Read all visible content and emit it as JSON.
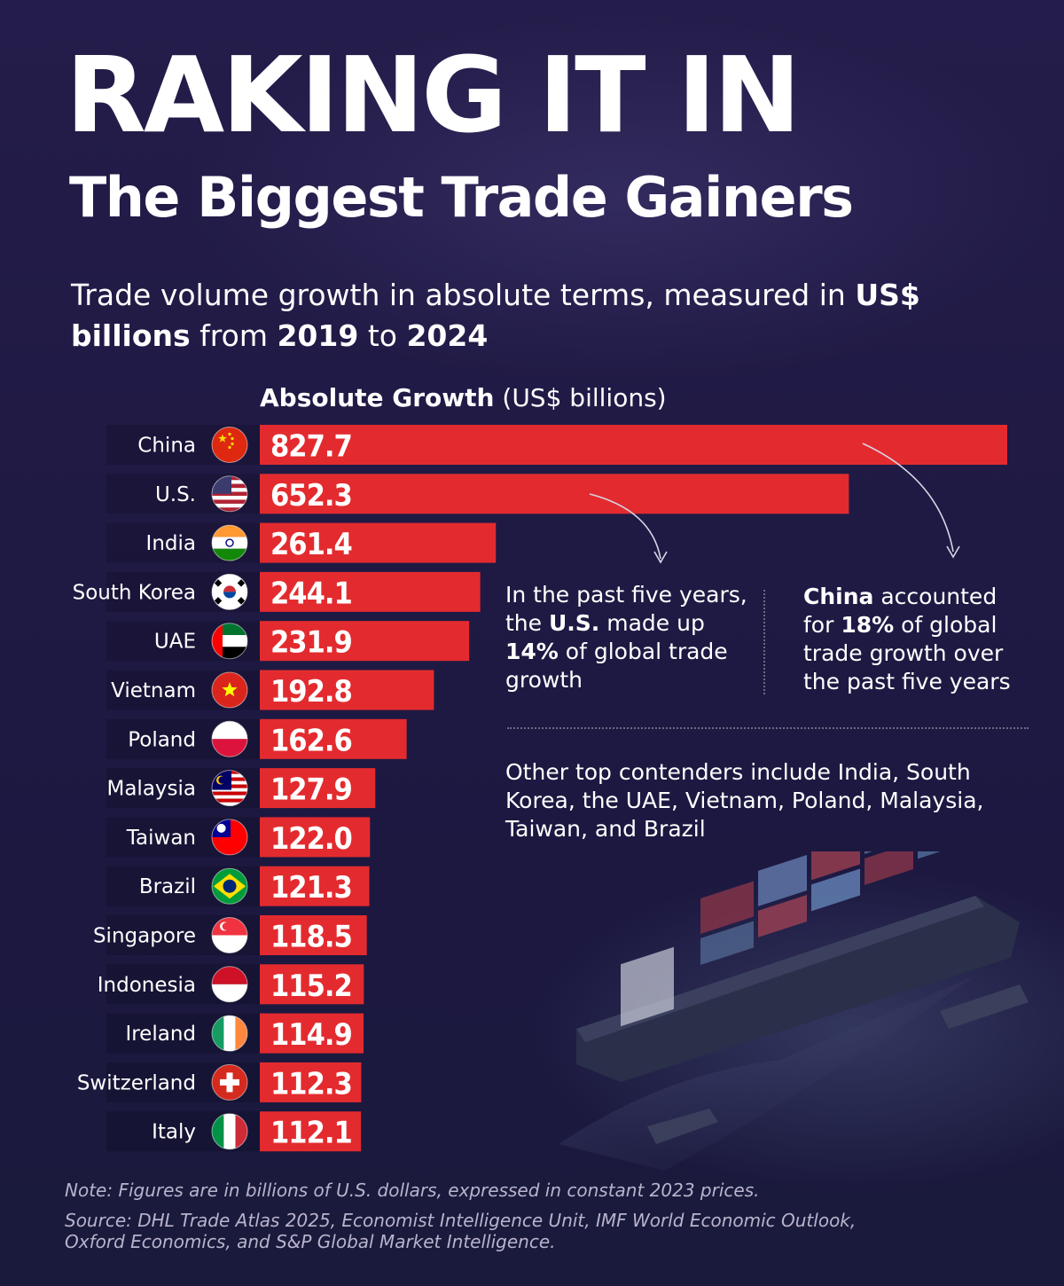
{
  "header": {
    "title": "RAKING IT IN",
    "subtitle": "The Biggest Trade Gainers"
  },
  "intro": {
    "text_1": "Trade volume growth in absolute terms, measured in ",
    "bold_1": "US$ billions",
    "text_2": " from ",
    "bold_2": "2019",
    "text_3": " to ",
    "bold_3": "2024"
  },
  "chart_data": {
    "type": "bar",
    "orientation": "horizontal",
    "title": "Absolute Growth",
    "unit": "(US$ billions)",
    "categories": [
      "China",
      "U.S.",
      "India",
      "South Korea",
      "UAE",
      "Vietnam",
      "Poland",
      "Malaysia",
      "Taiwan",
      "Brazil",
      "Singapore",
      "Indonesia",
      "Ireland",
      "Switzerland",
      "Italy"
    ],
    "values": [
      827.7,
      652.3,
      261.4,
      244.1,
      231.9,
      192.8,
      162.6,
      127.9,
      122.0,
      121.3,
      118.5,
      115.2,
      114.9,
      112.3,
      112.1
    ],
    "value_labels": [
      "827.7",
      "652.3",
      "261.4",
      "244.1",
      "231.9",
      "192.8",
      "162.6",
      "127.9",
      "122.0",
      "121.3",
      "118.5",
      "115.2",
      "114.9",
      "112.3",
      "112.1"
    ],
    "bar_color": "#e32b2f",
    "flags": [
      "china-flag-icon",
      "us-flag-icon",
      "india-flag-icon",
      "south-korea-flag-icon",
      "uae-flag-icon",
      "vietnam-flag-icon",
      "poland-flag-icon",
      "malaysia-flag-icon",
      "taiwan-flag-icon",
      "brazil-flag-icon",
      "singapore-flag-icon",
      "indonesia-flag-icon",
      "ireland-flag-icon",
      "switzerland-flag-icon",
      "italy-flag-icon"
    ],
    "grid": false,
    "legend": "none"
  },
  "callouts": {
    "us": {
      "text_1": "In the past five years, the ",
      "bold_1": "U.S.",
      "text_2": " made up ",
      "bold_2": "14%",
      "text_3": " of global trade growth"
    },
    "china": {
      "bold_1": "China",
      "text_1": " accounted for ",
      "bold_2": "18%",
      "text_2": " of global trade growth over the past five years"
    },
    "other": "Other top contenders include India, South Korea, the UAE, Vietnam, Poland, Malaysia, Taiwan, and Brazil"
  },
  "footer": {
    "note": "Note: Figures are in billions of U.S. dollars, expressed in constant 2023 prices.",
    "source": "Source: DHL Trade Atlas 2025, Economist Intelligence Unit, IMF World Economic Outlook, Oxford Economics, and S&P Global Market Intelligence."
  },
  "colors": {
    "background": "#1f1a44",
    "bar": "#e32b2f",
    "text": "#ffffff",
    "muted_text": "#b8b4cc"
  }
}
